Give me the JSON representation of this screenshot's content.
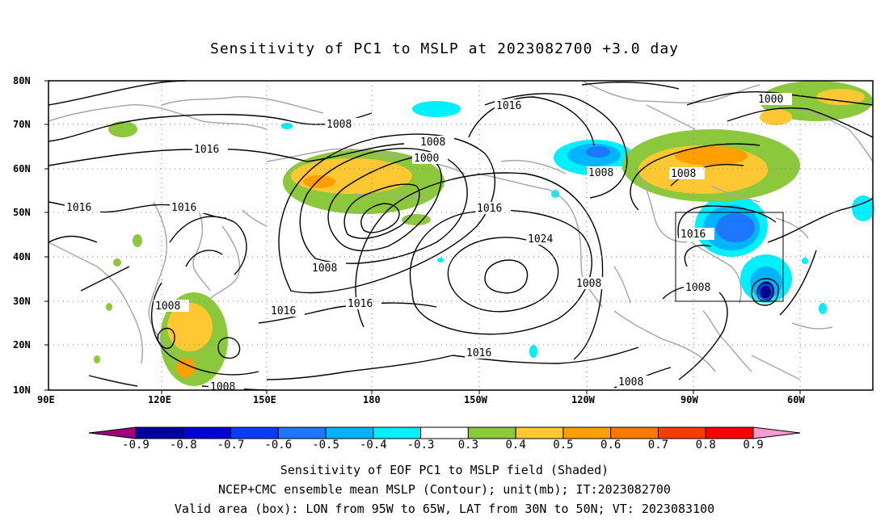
{
  "title": "Sensitivity of PC1 to MSLP at 2023082700 +3.0 day",
  "map": {
    "lon_range": [
      "90E",
      "40W"
    ],
    "lat_range": [
      "10N",
      "80N"
    ],
    "lon_ticks": [
      "90E",
      "120E",
      "150E",
      "180",
      "150W",
      "120W",
      "90W",
      "60W"
    ],
    "lat_ticks": [
      "10N",
      "20N",
      "30N",
      "40N",
      "50N",
      "60N",
      "70N",
      "80N"
    ],
    "valid_box": {
      "lon": [
        "95W",
        "65W"
      ],
      "lat": [
        "30N",
        "50N"
      ]
    },
    "contour_labels": [
      "1008",
      "1016",
      "1000",
      "1016",
      "1008",
      "1016",
      "1016",
      "1008",
      "1024",
      "1016",
      "1008",
      "1016",
      "1008",
      "1016",
      "1008",
      "1008",
      "1000",
      "1008",
      "1016",
      "1008",
      "1008"
    ]
  },
  "colorbar": {
    "colors": [
      "#a0007f",
      "#0000a0",
      "#0000d2",
      "#0a3cff",
      "#1e78ff",
      "#00b4ff",
      "#00f0ff",
      "#ffffff",
      "#8cc83c",
      "#ffc832",
      "#ffa000",
      "#ff7800",
      "#ff3c00",
      "#ff0000",
      "#ff9bd2"
    ],
    "labels": [
      "-0.9",
      "-0.8",
      "-0.7",
      "-0.6",
      "-0.5",
      "-0.4",
      "-0.3",
      "0.3",
      "0.4",
      "0.5",
      "0.6",
      "0.7",
      "0.8",
      "0.9"
    ]
  },
  "captions": [
    "Sensitivity of EOF PC1 to MSLP field (Shaded)",
    "NCEP+CMC ensemble mean MSLP (Contour); unit(mb); IT:2023082700",
    "Valid area (box): LON from 95W to 65W, LAT from 30N to 50N; VT: 2023083100"
  ]
}
